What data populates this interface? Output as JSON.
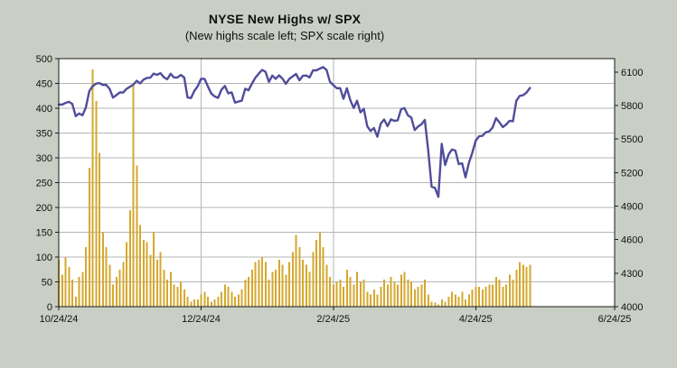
{
  "header": {
    "title": "NYSE New Highs w/ SPX",
    "subtitle": "(New highs scale left; SPX scale right)"
  },
  "colors": {
    "background": "#c9cfc4",
    "plot_background": "#ffffff",
    "grid": "#b5b5b5",
    "frame": "#1a1a1a",
    "bar": "#d5a82e",
    "line": "#504d9b",
    "text": "#111111"
  },
  "chart_data": {
    "type": "bar+line",
    "title": "NYSE New Highs w/ SPX",
    "subtitle": "(New highs scale left; SPX scale right)",
    "legend_position": "none",
    "grid": true,
    "x_axis": {
      "tick_labels": [
        "10/24/24",
        "12/24/24",
        "2/24/25",
        "4/24/25",
        "6/24/25"
      ],
      "tick_indices": [
        0,
        42,
        81,
        123,
        164
      ],
      "index_max": 164
    },
    "left_axis": {
      "name": "New highs",
      "ticks": [
        0,
        50,
        100,
        150,
        200,
        250,
        300,
        350,
        400,
        450,
        500
      ],
      "range": [
        0,
        500
      ]
    },
    "right_axis": {
      "name": "SPX",
      "ticks": [
        4000,
        4300,
        4600,
        4900,
        5200,
        5500,
        5800,
        6100
      ],
      "range": [
        4000,
        6220
      ]
    },
    "dates": [
      "10/24/24",
      "10/25/24",
      "10/28/24",
      "10/29/24",
      "10/30/24",
      "10/31/24",
      "11/1/24",
      "11/4/24",
      "11/5/24",
      "11/6/24",
      "11/7/24",
      "11/8/24",
      "11/11/24",
      "11/12/24",
      "11/13/24",
      "11/14/24",
      "11/15/24",
      "11/18/24",
      "11/19/24",
      "11/20/24",
      "11/21/24",
      "11/22/24",
      "11/25/24",
      "11/26/24",
      "11/27/24",
      "11/29/24",
      "12/2/24",
      "12/3/24",
      "12/4/24",
      "12/5/24",
      "12/6/24",
      "12/9/24",
      "12/10/24",
      "12/11/24",
      "12/12/24",
      "12/13/24",
      "12/16/24",
      "12/17/24",
      "12/18/24",
      "12/19/24",
      "12/20/24",
      "12/23/24",
      "12/24/24",
      "12/26/24",
      "12/27/24",
      "12/30/24",
      "12/31/24",
      "1/2/25",
      "1/3/25",
      "1/6/25",
      "1/7/25",
      "1/8/25",
      "1/10/25",
      "1/13/25",
      "1/14/25",
      "1/15/25",
      "1/16/25",
      "1/17/25",
      "1/21/25",
      "1/22/25",
      "1/23/25",
      "1/24/25",
      "1/27/25",
      "1/28/25",
      "1/29/25",
      "1/30/25",
      "1/31/25",
      "2/3/25",
      "2/4/25",
      "2/5/25",
      "2/6/25",
      "2/7/25",
      "2/10/25",
      "2/11/25",
      "2/12/25",
      "2/13/25",
      "2/14/25",
      "2/18/25",
      "2/19/25",
      "2/20/25",
      "2/21/25",
      "2/24/25",
      "2/25/25",
      "2/26/25",
      "2/27/25",
      "2/28/25",
      "3/3/25",
      "3/4/25",
      "3/5/25",
      "3/6/25",
      "3/7/25",
      "3/10/25",
      "3/11/25",
      "3/12/25",
      "3/13/25",
      "3/14/25",
      "3/17/25",
      "3/18/25",
      "3/19/25",
      "3/20/25",
      "3/21/25",
      "3/24/25",
      "3/25/25",
      "3/26/25",
      "3/27/25",
      "3/28/25",
      "3/31/25",
      "4/1/25",
      "4/2/25",
      "4/3/25",
      "4/4/25",
      "4/7/25",
      "4/8/25",
      "4/9/25",
      "4/10/25",
      "4/11/25",
      "4/14/25",
      "4/15/25",
      "4/16/25",
      "4/17/25",
      "4/21/25",
      "4/22/25",
      "4/23/25",
      "4/24/25",
      "4/25/25",
      "4/28/25",
      "4/29/25",
      "4/30/25",
      "5/1/25",
      "5/2/25",
      "5/5/25",
      "5/6/25",
      "5/7/25",
      "5/8/25",
      "5/9/25",
      "5/12/25",
      "5/13/25",
      "5/14/25",
      "5/15/25",
      "5/16/25"
    ],
    "series": [
      {
        "name": "NYSE New Highs",
        "type": "bar",
        "axis": "left",
        "color": "#d5a82e",
        "values": [
          95,
          65,
          100,
          80,
          55,
          20,
          60,
          70,
          120,
          280,
          478,
          415,
          310,
          150,
          120,
          85,
          45,
          60,
          75,
          90,
          130,
          195,
          450,
          285,
          165,
          135,
          130,
          105,
          150,
          95,
          110,
          75,
          55,
          70,
          45,
          40,
          50,
          35,
          20,
          10,
          15,
          15,
          25,
          30,
          20,
          10,
          15,
          20,
          30,
          45,
          40,
          30,
          20,
          25,
          35,
          55,
          60,
          75,
          90,
          95,
          100,
          90,
          55,
          70,
          75,
          95,
          85,
          65,
          90,
          110,
          145,
          120,
          95,
          85,
          70,
          110,
          135,
          150,
          120,
          85,
          60,
          45,
          50,
          55,
          40,
          75,
          60,
          45,
          70,
          50,
          55,
          30,
          25,
          35,
          25,
          40,
          55,
          45,
          60,
          50,
          45,
          65,
          70,
          55,
          50,
          35,
          40,
          45,
          55,
          25,
          10,
          8,
          5,
          15,
          10,
          20,
          30,
          25,
          20,
          30,
          15,
          25,
          35,
          40,
          40,
          35,
          40,
          45,
          45,
          60,
          55,
          40,
          45,
          65,
          55,
          75,
          90,
          85,
          80,
          85
        ]
      },
      {
        "name": "SPX",
        "type": "line",
        "axis": "right",
        "color": "#504d9b",
        "values": [
          5810,
          5808,
          5824,
          5833,
          5814,
          5705,
          5729,
          5713,
          5783,
          5929,
          5973,
          5996,
          6001,
          5984,
          5985,
          5949,
          5871,
          5894,
          5917,
          5917,
          5949,
          5969,
          5987,
          6022,
          5998,
          6032,
          6047,
          6050,
          6086,
          6075,
          6090,
          6053,
          6035,
          6084,
          6051,
          6051,
          6074,
          6051,
          5872,
          5867,
          5931,
          5974,
          6040,
          6038,
          5971,
          5907,
          5882,
          5869,
          5942,
          5975,
          5909,
          5918,
          5827,
          5836,
          5843,
          5950,
          5937,
          5997,
          6049,
          6086,
          6119,
          6101,
          6012,
          6068,
          6039,
          6071,
          6041,
          5995,
          6038,
          6061,
          6083,
          6026,
          6066,
          6069,
          6052,
          6115,
          6115,
          6130,
          6144,
          6118,
          6013,
          5983,
          5955,
          5956,
          5861,
          5955,
          5850,
          5778,
          5843,
          5739,
          5770,
          5615,
          5572,
          5599,
          5521,
          5639,
          5675,
          5615,
          5676,
          5663,
          5668,
          5768,
          5777,
          5712,
          5693,
          5581,
          5612,
          5633,
          5671,
          5396,
          5074,
          5062,
          4983,
          5457,
          5268,
          5363,
          5406,
          5397,
          5276,
          5283,
          5158,
          5288,
          5376,
          5485,
          5525,
          5529,
          5561,
          5569,
          5604,
          5687,
          5650,
          5607,
          5631,
          5664,
          5660,
          5844,
          5887,
          5893,
          5916,
          5958
        ]
      }
    ]
  }
}
